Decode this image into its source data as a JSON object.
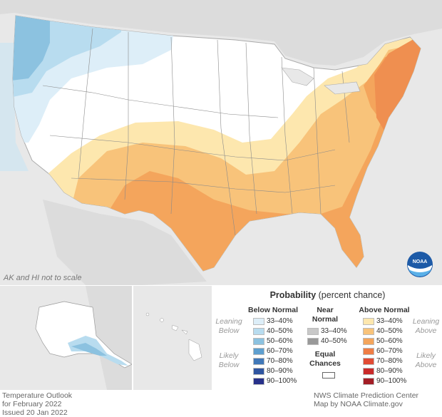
{
  "map": {
    "scale_note": "AK and HI not to scale",
    "logo_text": "NOAA"
  },
  "legend": {
    "title_bold": "Probability",
    "title_rest": " (percent chance)",
    "below": {
      "header": "Below Normal",
      "leaning": [
        "Leaning",
        "Below"
      ],
      "likely": [
        "Likely",
        "Below"
      ],
      "rows": [
        {
          "label": "33–40%",
          "color": "#ddeef8"
        },
        {
          "label": "40–50%",
          "color": "#b8dcef"
        },
        {
          "label": "50–60%",
          "color": "#8cc2e0"
        },
        {
          "label": "60–70%",
          "color": "#5e9fcf"
        },
        {
          "label": "70–80%",
          "color": "#4178b8"
        },
        {
          "label": "80–90%",
          "color": "#2f55a0"
        },
        {
          "label": "90–100%",
          "color": "#27318a"
        }
      ]
    },
    "near": {
      "header": [
        "Near",
        "Normal"
      ],
      "rows": [
        {
          "label": "33–40%",
          "color": "#c8c8c8"
        },
        {
          "label": "40–50%",
          "color": "#999999"
        }
      ],
      "equal": [
        "Equal",
        "Chances"
      ],
      "equal_color": "#ffffff"
    },
    "above": {
      "header": "Above Normal",
      "leaning": [
        "Leaning",
        "Above"
      ],
      "likely": [
        "Likely",
        "Above"
      ],
      "rows": [
        {
          "label": "33–40%",
          "color": "#fde7ae"
        },
        {
          "label": "40–50%",
          "color": "#f8c37a"
        },
        {
          "label": "50–60%",
          "color": "#f4a55c"
        },
        {
          "label": "60–70%",
          "color": "#ef7d45"
        },
        {
          "label": "70–80%",
          "color": "#e14b34"
        },
        {
          "label": "80–90%",
          "color": "#c92a2a"
        },
        {
          "label": "90–100%",
          "color": "#a31d26"
        }
      ]
    }
  },
  "footer": {
    "left_line1": "Temperature Outlook",
    "left_line2": "for February 2022",
    "left_line3": "Issued 20 Jan 2022",
    "right_line1": "NWS Climate Prediction Center",
    "right_line2": "Map by NOAA Climate.gov"
  }
}
